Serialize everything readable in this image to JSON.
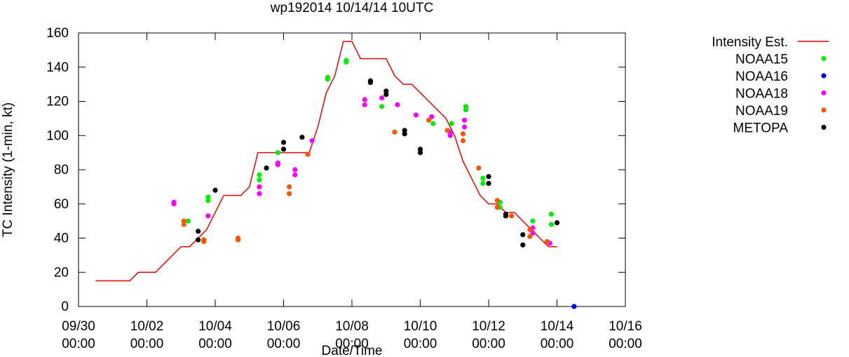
{
  "chart_data": {
    "type": "scatter",
    "title": "wp192014 10/14/14 10UTC",
    "xlabel": "Date/Time",
    "ylabel": "TC Intensity (1-min, kt)",
    "xlim": [
      "2014-09-30 00:00",
      "2014-10-16 00:00"
    ],
    "ylim": [
      0,
      160
    ],
    "x_ticks": [
      {
        "x": "2014-09-30 00:00",
        "label_date": "09/30",
        "label_time": "00:00"
      },
      {
        "x": "2014-10-02 00:00",
        "label_date": "10/02",
        "label_time": "00:00"
      },
      {
        "x": "2014-10-04 00:00",
        "label_date": "10/04",
        "label_time": "00:00"
      },
      {
        "x": "2014-10-06 00:00",
        "label_date": "10/06",
        "label_time": "00:00"
      },
      {
        "x": "2014-10-08 00:00",
        "label_date": "10/08",
        "label_time": "00:00"
      },
      {
        "x": "2014-10-10 00:00",
        "label_date": "10/10",
        "label_time": "00:00"
      },
      {
        "x": "2014-10-12 00:00",
        "label_date": "10/12",
        "label_time": "00:00"
      },
      {
        "x": "2014-10-14 00:00",
        "label_date": "10/14",
        "label_time": "00:00"
      },
      {
        "x": "2014-10-16 00:00",
        "label_date": "10/16",
        "label_time": "00:00"
      }
    ],
    "y_ticks": [
      0,
      20,
      40,
      60,
      80,
      100,
      120,
      140,
      160
    ],
    "grid": false,
    "legend_position": "right, outside plot",
    "series": [
      {
        "name": "Intensity Est.",
        "kind": "line",
        "color": "#ee0000",
        "points": [
          [
            "2014-09-30 12:00",
            15
          ],
          [
            "2014-09-30 18:00",
            15
          ],
          [
            "2014-10-01 00:00",
            15
          ],
          [
            "2014-10-01 06:00",
            15
          ],
          [
            "2014-10-01 12:00",
            15
          ],
          [
            "2014-10-01 18:00",
            20
          ],
          [
            "2014-10-02 00:00",
            20
          ],
          [
            "2014-10-02 06:00",
            20
          ],
          [
            "2014-10-02 12:00",
            25
          ],
          [
            "2014-10-02 18:00",
            30
          ],
          [
            "2014-10-03 00:00",
            35
          ],
          [
            "2014-10-03 06:00",
            35
          ],
          [
            "2014-10-03 12:00",
            40
          ],
          [
            "2014-10-03 18:00",
            45
          ],
          [
            "2014-10-04 00:00",
            55
          ],
          [
            "2014-10-04 06:00",
            65
          ],
          [
            "2014-10-04 12:00",
            65
          ],
          [
            "2014-10-04 18:00",
            65
          ],
          [
            "2014-10-05 00:00",
            70
          ],
          [
            "2014-10-05 06:00",
            90
          ],
          [
            "2014-10-05 12:00",
            90
          ],
          [
            "2014-10-05 18:00",
            90
          ],
          [
            "2014-10-06 00:00",
            90
          ],
          [
            "2014-10-06 06:00",
            90
          ],
          [
            "2014-10-06 12:00",
            90
          ],
          [
            "2014-10-06 18:00",
            90
          ],
          [
            "2014-10-07 00:00",
            105
          ],
          [
            "2014-10-07 06:00",
            125
          ],
          [
            "2014-10-07 12:00",
            135
          ],
          [
            "2014-10-07 18:00",
            155
          ],
          [
            "2014-10-08 00:00",
            155
          ],
          [
            "2014-10-08 06:00",
            145
          ],
          [
            "2014-10-08 12:00",
            145
          ],
          [
            "2014-10-08 18:00",
            145
          ],
          [
            "2014-10-09 00:00",
            145
          ],
          [
            "2014-10-09 06:00",
            135
          ],
          [
            "2014-10-09 12:00",
            130
          ],
          [
            "2014-10-09 18:00",
            130
          ],
          [
            "2014-10-10 00:00",
            125
          ],
          [
            "2014-10-10 06:00",
            120
          ],
          [
            "2014-10-10 12:00",
            115
          ],
          [
            "2014-10-10 18:00",
            110
          ],
          [
            "2014-10-11 00:00",
            100
          ],
          [
            "2014-10-11 06:00",
            85
          ],
          [
            "2014-10-11 12:00",
            75
          ],
          [
            "2014-10-11 18:00",
            65
          ],
          [
            "2014-10-12 00:00",
            60
          ],
          [
            "2014-10-12 06:00",
            60
          ],
          [
            "2014-10-12 12:00",
            55
          ],
          [
            "2014-10-12 18:00",
            55
          ],
          [
            "2014-10-13 00:00",
            50
          ],
          [
            "2014-10-13 06:00",
            45
          ],
          [
            "2014-10-13 12:00",
            40
          ],
          [
            "2014-10-13 18:00",
            35
          ],
          [
            "2014-10-14 00:00",
            35
          ]
        ]
      },
      {
        "name": "NOAA15",
        "kind": "points",
        "color": "#00ee00",
        "points": [
          [
            "2014-10-03 05:00",
            50
          ],
          [
            "2014-10-03 19:00",
            62
          ],
          [
            "2014-10-03 19:00",
            64
          ],
          [
            "2014-10-05 07:00",
            74
          ],
          [
            "2014-10-05 07:00",
            77
          ],
          [
            "2014-10-05 20:00",
            90
          ],
          [
            "2014-10-07 07:00",
            133
          ],
          [
            "2014-10-07 07:00",
            134
          ],
          [
            "2014-10-07 20:00",
            143
          ],
          [
            "2014-10-07 20:00",
            144
          ],
          [
            "2014-10-08 21:00",
            117
          ],
          [
            "2014-10-10 09:00",
            107
          ],
          [
            "2014-10-10 22:00",
            107
          ],
          [
            "2014-10-11 08:00",
            115
          ],
          [
            "2014-10-11 08:00",
            117
          ],
          [
            "2014-10-11 20:00",
            72
          ],
          [
            "2014-10-11 20:00",
            75
          ],
          [
            "2014-10-12 08:00",
            58
          ],
          [
            "2014-10-12 08:00",
            61
          ],
          [
            "2014-10-13 07:00",
            50
          ],
          [
            "2014-10-13 20:00",
            48
          ],
          [
            "2014-10-13 20:00",
            54
          ]
        ]
      },
      {
        "name": "NOAA16",
        "kind": "points",
        "color": "#0000ee",
        "points": [
          [
            "2014-10-14 12:00",
            0
          ]
        ]
      },
      {
        "name": "NOAA18",
        "kind": "points",
        "color": "#ff00ff",
        "points": [
          [
            "2014-10-02 19:00",
            60
          ],
          [
            "2014-10-02 19:00",
            61
          ],
          [
            "2014-10-03 19:00",
            53
          ],
          [
            "2014-10-05 07:00",
            66
          ],
          [
            "2014-10-05 07:00",
            70
          ],
          [
            "2014-10-05 20:00",
            83
          ],
          [
            "2014-10-05 20:00",
            84
          ],
          [
            "2014-10-06 08:00",
            77
          ],
          [
            "2014-10-06 08:00",
            80
          ],
          [
            "2014-10-06 20:00",
            97
          ],
          [
            "2014-10-08 09:00",
            118
          ],
          [
            "2014-10-08 09:00",
            121
          ],
          [
            "2014-10-08 21:00",
            122
          ],
          [
            "2014-10-09 08:00",
            118
          ],
          [
            "2014-10-09 21:00",
            112
          ],
          [
            "2014-10-10 08:00",
            111
          ],
          [
            "2014-10-10 21:00",
            100
          ],
          [
            "2014-10-10 21:00",
            102
          ],
          [
            "2014-10-11 07:00",
            105
          ],
          [
            "2014-10-11 07:00",
            109
          ],
          [
            "2014-10-13 07:00",
            43
          ],
          [
            "2014-10-13 07:00",
            46
          ],
          [
            "2014-10-13 19:00",
            37
          ]
        ]
      },
      {
        "name": "NOAA19",
        "kind": "points",
        "color": "#ff5500",
        "points": [
          [
            "2014-10-03 02:00",
            48
          ],
          [
            "2014-10-03 02:00",
            50
          ],
          [
            "2014-10-03 16:00",
            38
          ],
          [
            "2014-10-03 16:00",
            39
          ],
          [
            "2014-10-04 16:00",
            39
          ],
          [
            "2014-10-04 16:00",
            40
          ],
          [
            "2014-10-06 04:00",
            66
          ],
          [
            "2014-10-06 04:00",
            70
          ],
          [
            "2014-10-06 17:00",
            89
          ],
          [
            "2014-10-09 06:00",
            102
          ],
          [
            "2014-10-10 06:00",
            109
          ],
          [
            "2014-10-10 19:00",
            103
          ],
          [
            "2014-10-11 06:00",
            97
          ],
          [
            "2014-10-11 06:00",
            101
          ],
          [
            "2014-10-11 17:00",
            81
          ],
          [
            "2014-10-12 06:00",
            58
          ],
          [
            "2014-10-12 06:00",
            62
          ],
          [
            "2014-10-12 16:00",
            53
          ],
          [
            "2014-10-13 05:00",
            41
          ],
          [
            "2014-10-13 05:00",
            45
          ],
          [
            "2014-10-13 17:00",
            38
          ]
        ]
      },
      {
        "name": "METOPA",
        "kind": "points",
        "color": "#000000",
        "points": [
          [
            "2014-10-03 12:00",
            39
          ],
          [
            "2014-10-03 12:00",
            44
          ],
          [
            "2014-10-04 00:00",
            68
          ],
          [
            "2014-10-05 12:00",
            81
          ],
          [
            "2014-10-06 00:00",
            92
          ],
          [
            "2014-10-06 00:00",
            96
          ],
          [
            "2014-10-06 13:00",
            99
          ],
          [
            "2014-10-08 13:00",
            131
          ],
          [
            "2014-10-08 13:00",
            132
          ],
          [
            "2014-10-09 00:00",
            124
          ],
          [
            "2014-10-09 00:00",
            126
          ],
          [
            "2014-10-09 13:00",
            101
          ],
          [
            "2014-10-09 13:00",
            103
          ],
          [
            "2014-10-10 00:00",
            90
          ],
          [
            "2014-10-10 00:00",
            92
          ],
          [
            "2014-10-12 00:00",
            72
          ],
          [
            "2014-10-12 00:00",
            76
          ],
          [
            "2014-10-12 12:00",
            53
          ],
          [
            "2014-10-12 12:00",
            54
          ],
          [
            "2014-10-13 00:00",
            36
          ],
          [
            "2014-10-13 00:00",
            42
          ],
          [
            "2014-10-14 00:00",
            49
          ]
        ]
      }
    ]
  }
}
